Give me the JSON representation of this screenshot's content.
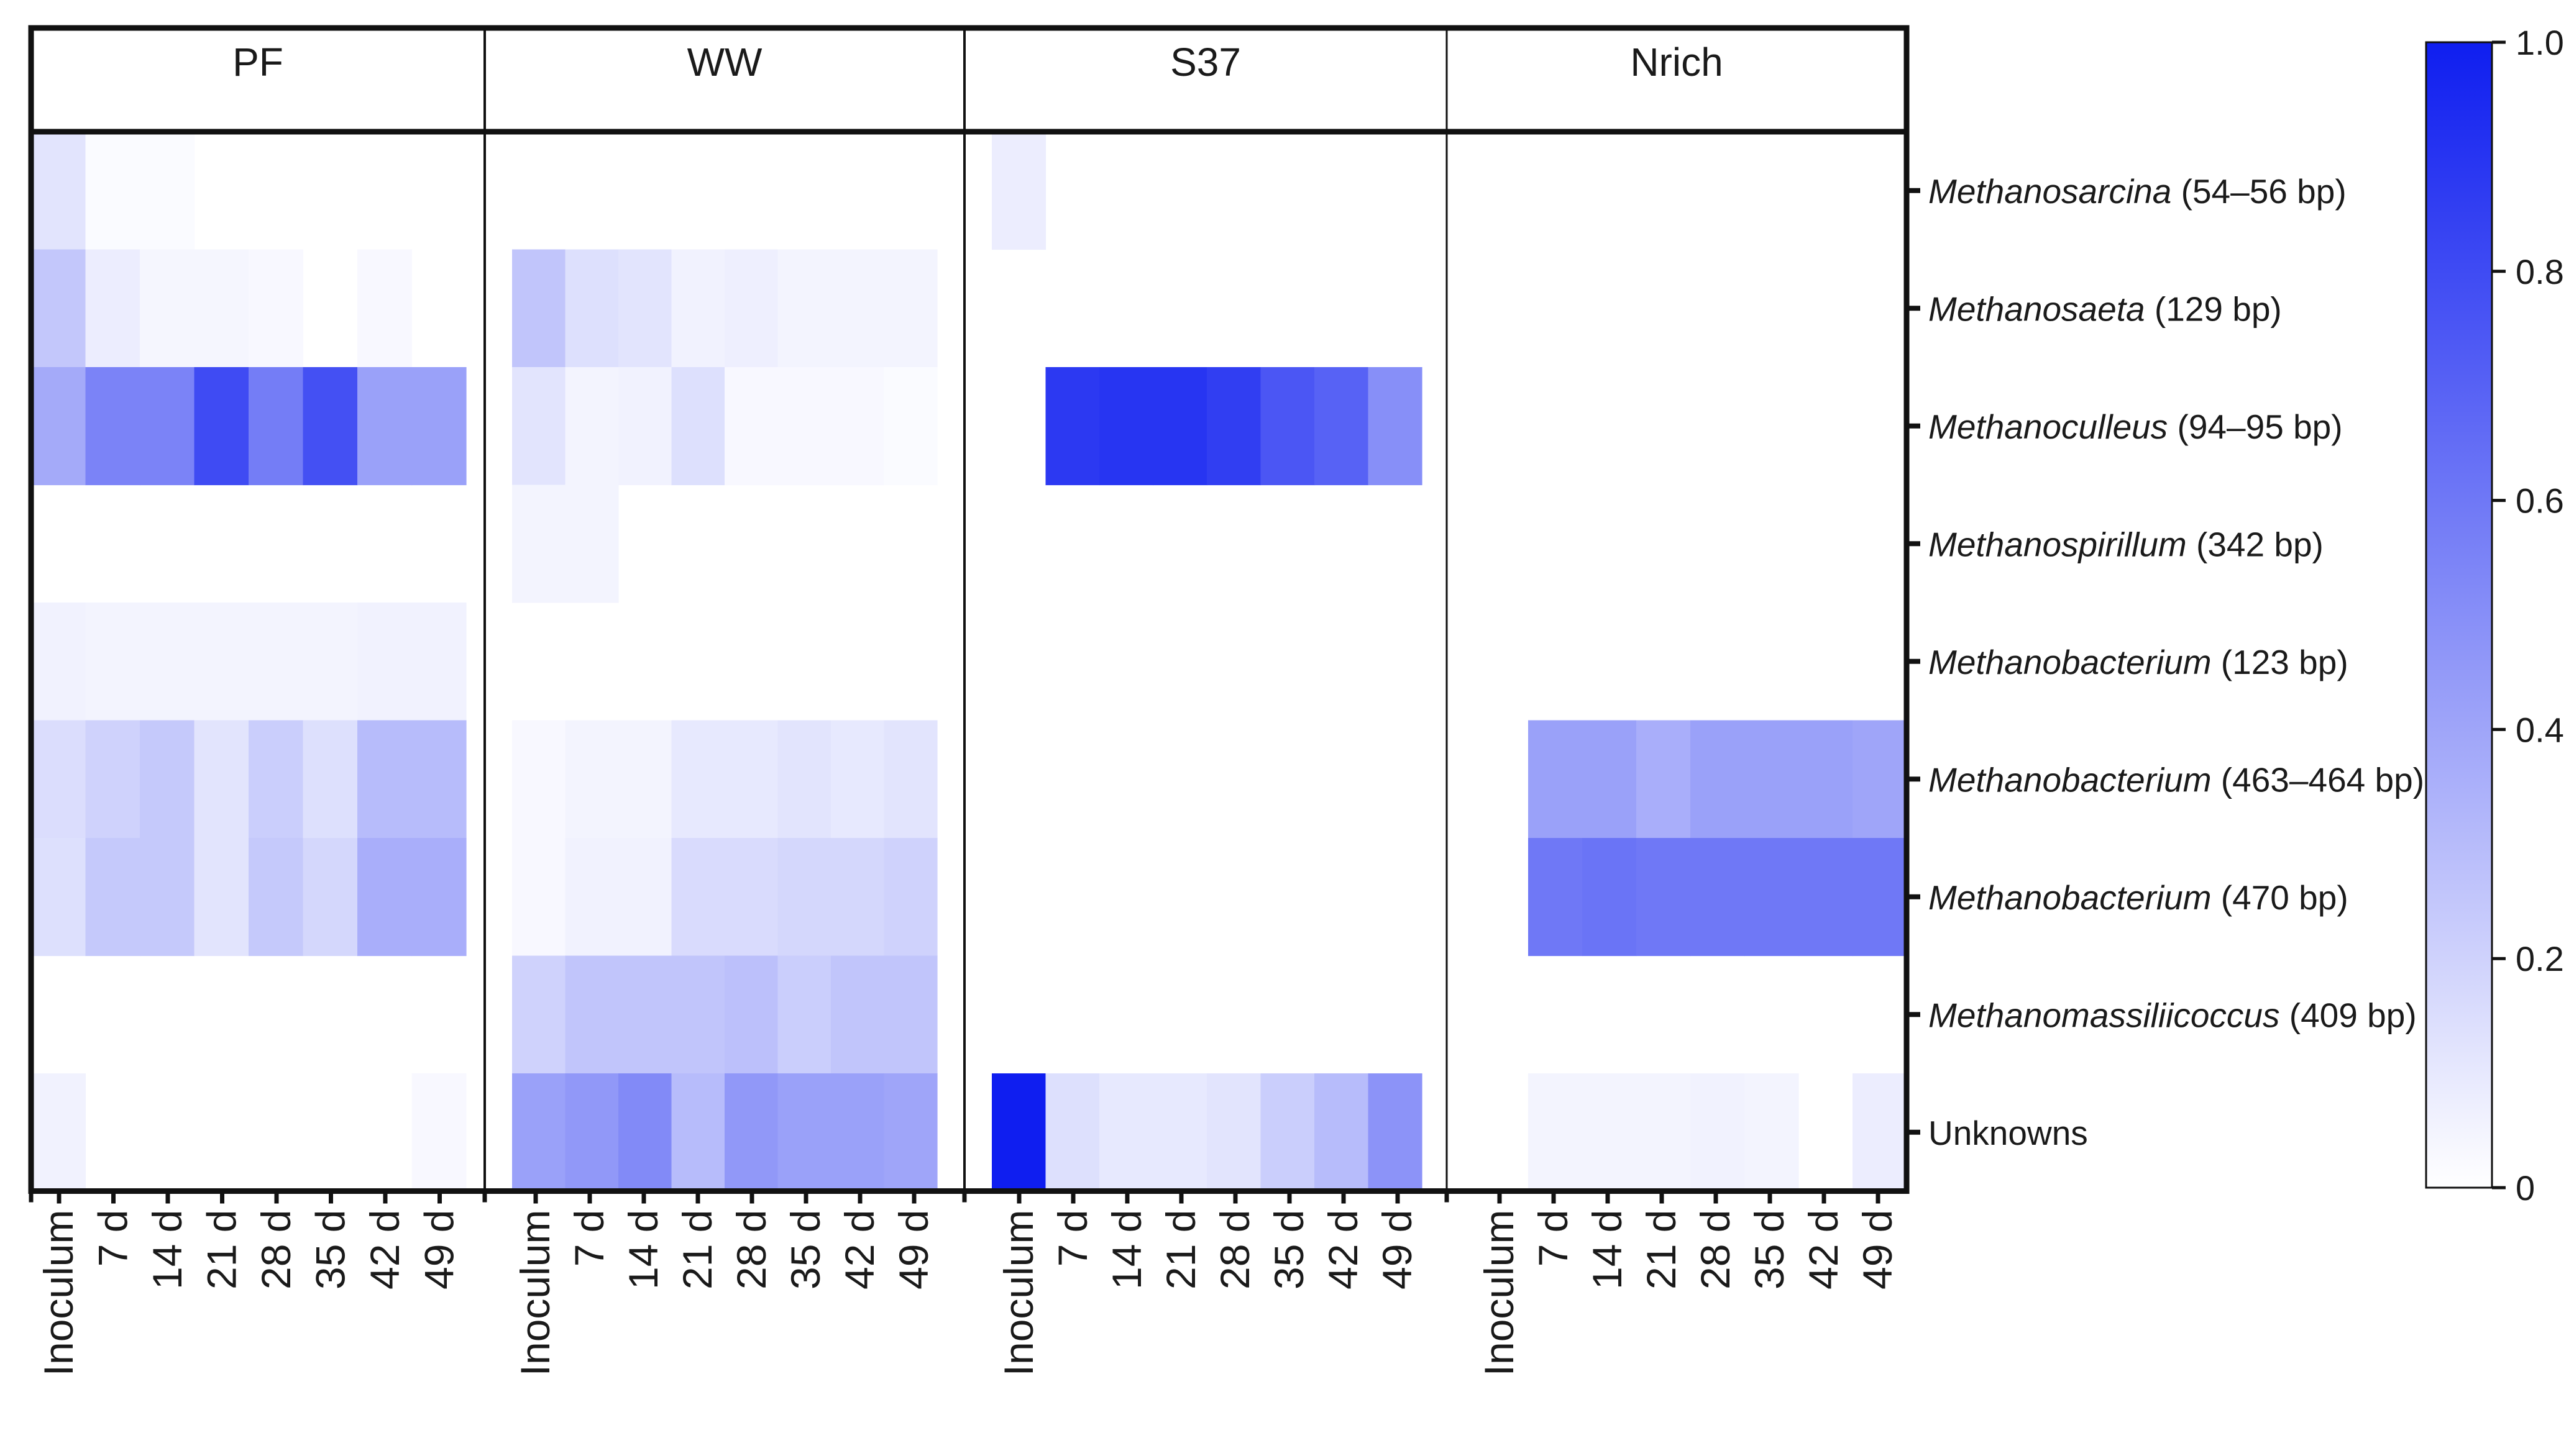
{
  "chart_data": {
    "type": "heatmap",
    "panels": [
      "PF",
      "WW",
      "S37",
      "Nrich"
    ],
    "columns": [
      "Inoculum",
      "7 d",
      "14 d",
      "21 d",
      "28 d",
      "35 d",
      "42 d",
      "49 d"
    ],
    "rows": [
      {
        "name": "Methanosarcina",
        "size": "(54–56 bp)"
      },
      {
        "name": "Methanosaeta",
        "size": "(129 bp)"
      },
      {
        "name": "Methanoculleus",
        "size": "(94–95 bp)"
      },
      {
        "name": "Methanospirillum",
        "size": "(342 bp)"
      },
      {
        "name": "Methanobacterium",
        "size": "(123 bp)"
      },
      {
        "name": "Methanobacterium",
        "size": "(463–464 bp)"
      },
      {
        "name": "Methanobacterium",
        "size": "(470 bp)"
      },
      {
        "name": "Methanomassiliicoccus",
        "size": "(409 bp)"
      },
      {
        "name": "Unknowns",
        "size": ""
      }
    ],
    "values": {
      "PF": [
        [
          0.12,
          0.02,
          0.02,
          0,
          0,
          0,
          0,
          0
        ],
        [
          0.25,
          0.08,
          0.04,
          0.04,
          0.03,
          0,
          0.03,
          0
        ],
        [
          0.38,
          0.55,
          0.55,
          0.8,
          0.58,
          0.78,
          0.42,
          0.42
        ],
        [
          0,
          0,
          0,
          0,
          0,
          0,
          0,
          0
        ],
        [
          0.06,
          0.05,
          0.05,
          0.05,
          0.05,
          0.05,
          0.06,
          0.06
        ],
        [
          0.15,
          0.2,
          0.24,
          0.12,
          0.22,
          0.14,
          0.3,
          0.3
        ],
        [
          0.14,
          0.24,
          0.24,
          0.12,
          0.24,
          0.18,
          0.36,
          0.36
        ],
        [
          0,
          0,
          0,
          0,
          0,
          0,
          0,
          0
        ],
        [
          0.06,
          0,
          0,
          0,
          0,
          0,
          0,
          0.03
        ]
      ],
      "WW": [
        [
          0,
          0,
          0,
          0,
          0,
          0,
          0,
          0
        ],
        [
          0.26,
          0.14,
          0.12,
          0.06,
          0.07,
          0.05,
          0.05,
          0.05
        ],
        [
          0.12,
          0.05,
          0.06,
          0.14,
          0.03,
          0.03,
          0.03,
          0.02
        ],
        [
          0.05,
          0.05,
          0,
          0,
          0,
          0,
          0,
          0
        ],
        [
          0,
          0,
          0,
          0,
          0,
          0,
          0,
          0
        ],
        [
          0.03,
          0.05,
          0.05,
          0.1,
          0.1,
          0.12,
          0.1,
          0.12
        ],
        [
          0.03,
          0.06,
          0.06,
          0.16,
          0.16,
          0.18,
          0.18,
          0.2
        ],
        [
          0.2,
          0.26,
          0.26,
          0.26,
          0.28,
          0.22,
          0.26,
          0.26
        ],
        [
          0.42,
          0.46,
          0.52,
          0.3,
          0.46,
          0.42,
          0.42,
          0.4
        ]
      ],
      "S37": [
        [
          0.08,
          0,
          0,
          0,
          0,
          0,
          0,
          0
        ],
        [
          0,
          0,
          0,
          0,
          0,
          0,
          0,
          0
        ],
        [
          0,
          0.88,
          0.9,
          0.9,
          0.86,
          0.75,
          0.7,
          0.5
        ],
        [
          0,
          0,
          0,
          0,
          0,
          0,
          0,
          0
        ],
        [
          0,
          0,
          0,
          0,
          0,
          0,
          0,
          0
        ],
        [
          0,
          0,
          0,
          0,
          0,
          0,
          0,
          0
        ],
        [
          0,
          0,
          0,
          0,
          0,
          0,
          0,
          0
        ],
        [
          0,
          0,
          0,
          0,
          0,
          0,
          0,
          0
        ],
        [
          1.0,
          0.14,
          0.1,
          0.1,
          0.12,
          0.22,
          0.3,
          0.48
        ]
      ],
      "Nrich": [
        [
          0,
          0,
          0,
          0,
          0,
          0,
          0,
          0
        ],
        [
          0,
          0,
          0,
          0,
          0,
          0,
          0,
          0
        ],
        [
          0,
          0,
          0,
          0,
          0,
          0,
          0,
          0
        ],
        [
          0,
          0,
          0,
          0,
          0,
          0,
          0,
          0
        ],
        [
          0,
          0,
          0,
          0,
          0,
          0,
          0,
          0
        ],
        [
          0,
          0.42,
          0.42,
          0.36,
          0.42,
          0.42,
          0.42,
          0.4
        ],
        [
          0,
          0.6,
          0.62,
          0.6,
          0.6,
          0.6,
          0.6,
          0.6
        ],
        [
          0,
          0,
          0,
          0,
          0,
          0,
          0,
          0
        ],
        [
          0,
          0.05,
          0.05,
          0.05,
          0.06,
          0.05,
          0,
          0.08
        ]
      ]
    },
    "colorscale": {
      "min": 0,
      "max": 1,
      "low_color": "#ffffff",
      "high_color": "#0f1ef0",
      "ticks": [
        "0",
        "0.2",
        "0.4",
        "0.6",
        "0.8",
        "1.0"
      ]
    }
  }
}
